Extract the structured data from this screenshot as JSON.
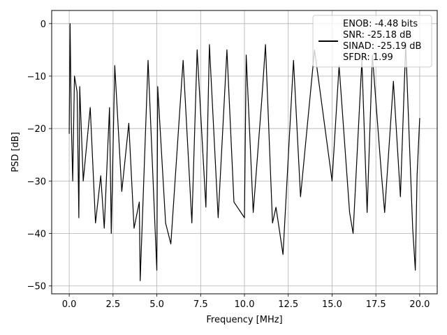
{
  "chart_data": {
    "type": "line",
    "title": "",
    "xlabel": "Frequency [MHz]",
    "ylabel": "PSD [dB]",
    "xlim": [
      -1.0,
      21.0
    ],
    "ylim": [
      -51.5,
      2.5
    ],
    "xticks": [
      0.0,
      2.5,
      5.0,
      7.5,
      10.0,
      12.5,
      15.0,
      17.5,
      20.0
    ],
    "xtick_labels": [
      "0.0",
      "2.5",
      "5.0",
      "7.5",
      "10.0",
      "12.5",
      "15.0",
      "17.5",
      "20.0"
    ],
    "yticks": [
      0,
      -10,
      -20,
      -30,
      -40,
      -50
    ],
    "ytick_labels": [
      "0",
      "−10",
      "−20",
      "−30",
      "−40",
      "−50"
    ],
    "grid": true,
    "legend_position": "top-right",
    "series": [
      {
        "name": "",
        "color": "#000000",
        "legend_lines": [
          "ENOB: -4.48 bits",
          "SNR: -25.18 dB",
          "SINAD: -25.19 dB",
          "SFDR: 1.99"
        ],
        "x": [
          0.0,
          0.05,
          0.12,
          0.2,
          0.3,
          0.45,
          0.55,
          0.6,
          0.8,
          1.2,
          1.5,
          1.8,
          2.0,
          2.3,
          2.4,
          2.6,
          3.0,
          3.4,
          3.7,
          4.0,
          4.05,
          4.5,
          5.0,
          5.05,
          5.5,
          5.8,
          6.5,
          7.0,
          7.3,
          7.8,
          8.0,
          8.5,
          9.0,
          9.4,
          10.0,
          10.1,
          10.5,
          11.0,
          11.2,
          11.6,
          11.8,
          12.2,
          12.8,
          13.2,
          14.0,
          15.0,
          15.4,
          16.0,
          16.2,
          16.7,
          17.0,
          17.3,
          17.8,
          18.0,
          18.5,
          18.9,
          19.2,
          19.6,
          19.75,
          19.85,
          20.0
        ],
        "y": [
          -21,
          0,
          -19,
          -30,
          -10,
          -13,
          -37,
          -12,
          -30,
          -16,
          -38,
          -29,
          -39,
          -16,
          -40,
          -8,
          -32,
          -19,
          -39,
          -34,
          -49,
          -7,
          -47,
          -12,
          -38,
          -42,
          -7,
          -38,
          -5,
          -35,
          -4,
          -37,
          -5,
          -34,
          -37,
          -6,
          -36,
          -14,
          -4,
          -38,
          -35,
          -44,
          -7,
          -33,
          -5,
          -30,
          -8,
          -36,
          -40,
          -7,
          -36,
          -6,
          -28,
          -36,
          -11,
          -33,
          -4,
          -39,
          -47,
          -29,
          -18
        ]
      }
    ]
  }
}
